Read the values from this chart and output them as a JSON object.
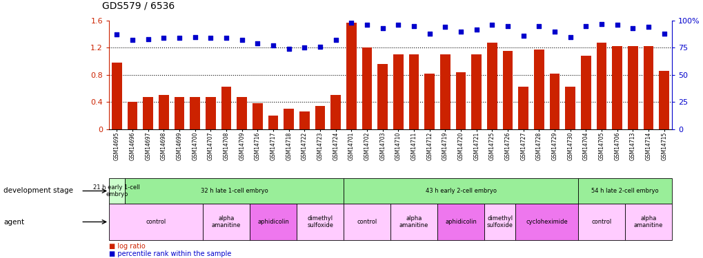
{
  "title": "GDS579 / 6536",
  "samples": [
    "GSM14695",
    "GSM14696",
    "GSM14697",
    "GSM14698",
    "GSM14699",
    "GSM14700",
    "GSM14707",
    "GSM14708",
    "GSM14709",
    "GSM14716",
    "GSM14717",
    "GSM14718",
    "GSM14722",
    "GSM14723",
    "GSM14724",
    "GSM14701",
    "GSM14702",
    "GSM14703",
    "GSM14710",
    "GSM14711",
    "GSM14712",
    "GSM14719",
    "GSM14720",
    "GSM14721",
    "GSM14725",
    "GSM14726",
    "GSM14727",
    "GSM14728",
    "GSM14729",
    "GSM14730",
    "GSM14704",
    "GSM14705",
    "GSM14706",
    "GSM14713",
    "GSM14714",
    "GSM14715"
  ],
  "log_ratio": [
    0.98,
    0.4,
    0.47,
    0.5,
    0.47,
    0.47,
    0.47,
    0.62,
    0.47,
    0.38,
    0.2,
    0.3,
    0.26,
    0.34,
    0.5,
    1.57,
    1.2,
    0.96,
    1.1,
    1.1,
    0.82,
    1.1,
    0.84,
    1.1,
    1.27,
    1.15,
    0.62,
    1.17,
    0.82,
    0.62,
    1.08,
    1.27,
    1.22,
    1.22,
    1.22,
    0.86
  ],
  "percentile_rank": [
    87,
    82,
    83,
    84,
    84,
    85,
    84,
    84,
    82,
    79,
    77,
    74,
    75,
    76,
    82,
    98,
    96,
    93,
    96,
    95,
    88,
    94,
    90,
    92,
    96,
    95,
    86,
    95,
    90,
    85,
    95,
    97,
    96,
    93,
    94,
    88
  ],
  "bar_color": "#cc2200",
  "dot_color": "#0000cc",
  "ylim_left": [
    0,
    1.6
  ],
  "ylim_right": [
    0,
    100
  ],
  "yticks_left": [
    0,
    0.4,
    0.8,
    1.2,
    1.6
  ],
  "yticks_right": [
    0,
    25,
    50,
    75,
    100
  ],
  "dev_stage_data": [
    {
      "label": "21 h early 1-cell\nembryo",
      "start": 0,
      "end": 1,
      "color": "#ccffcc"
    },
    {
      "label": "32 h late 1-cell embryo",
      "start": 1,
      "end": 15,
      "color": "#99ee99"
    },
    {
      "label": "43 h early 2-cell embryo",
      "start": 15,
      "end": 30,
      "color": "#99ee99"
    },
    {
      "label": "54 h late 2-cell embryo",
      "start": 30,
      "end": 36,
      "color": "#99ee99"
    }
  ],
  "agent_data": [
    {
      "label": "control",
      "start": 0,
      "end": 6,
      "color": "#ffccff"
    },
    {
      "label": "alpha\namanitine",
      "start": 6,
      "end": 9,
      "color": "#ffccff"
    },
    {
      "label": "aphidicolin",
      "start": 9,
      "end": 12,
      "color": "#ee77ee"
    },
    {
      "label": "dimethyl\nsulfoxide",
      "start": 12,
      "end": 15,
      "color": "#ffccff"
    },
    {
      "label": "control",
      "start": 15,
      "end": 18,
      "color": "#ffccff"
    },
    {
      "label": "alpha\namanitine",
      "start": 18,
      "end": 21,
      "color": "#ffccff"
    },
    {
      "label": "aphidicolin",
      "start": 21,
      "end": 24,
      "color": "#ee77ee"
    },
    {
      "label": "dimethyl\nsulfoxide",
      "start": 24,
      "end": 26,
      "color": "#ffccff"
    },
    {
      "label": "cycloheximide",
      "start": 26,
      "end": 30,
      "color": "#ee77ee"
    },
    {
      "label": "control",
      "start": 30,
      "end": 33,
      "color": "#ffccff"
    },
    {
      "label": "alpha\namanitine",
      "start": 33,
      "end": 36,
      "color": "#ffccff"
    }
  ],
  "left_axis_color": "#cc2200",
  "right_axis_color": "#0000cc",
  "bg_color": "#f0f0f0"
}
